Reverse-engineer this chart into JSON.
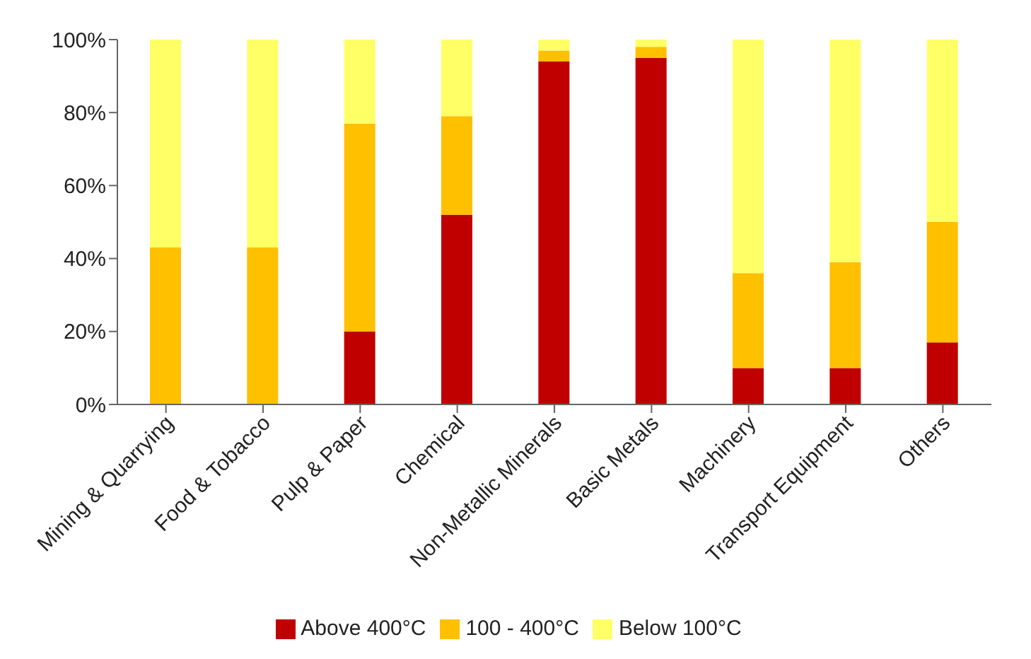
{
  "chart_data": {
    "type": "bar",
    "stacked": true,
    "categories": [
      "Mining & Quarrying",
      "Food & Tobacco",
      "Pulp & Paper",
      "Chemical",
      "Non-Metallic Minerals",
      "Basic Metals",
      "Machinery",
      "Transport Equipment",
      "Others"
    ],
    "series": [
      {
        "name": "Above 400°C",
        "color": "#c00000",
        "values": [
          0,
          0,
          20,
          52,
          94,
          95,
          10,
          10,
          17
        ]
      },
      {
        "name": "100 - 400°C",
        "color": "#ffc000",
        "values": [
          43,
          43,
          57,
          27,
          3,
          3,
          26,
          29,
          33
        ]
      },
      {
        "name": "Below 100°C",
        "color": "#ffff66",
        "values": [
          57,
          57,
          23,
          21,
          3,
          2,
          64,
          61,
          50
        ]
      }
    ],
    "ylim": [
      0,
      100
    ],
    "yticks": [
      {
        "value": 0,
        "label": "0%"
      },
      {
        "value": 20,
        "label": "20%"
      },
      {
        "value": 40,
        "label": "40%"
      },
      {
        "value": 60,
        "label": "60%"
      },
      {
        "value": 80,
        "label": "80%"
      },
      {
        "value": 100,
        "label": "100%"
      }
    ],
    "grid": false,
    "legend": "bottom"
  }
}
